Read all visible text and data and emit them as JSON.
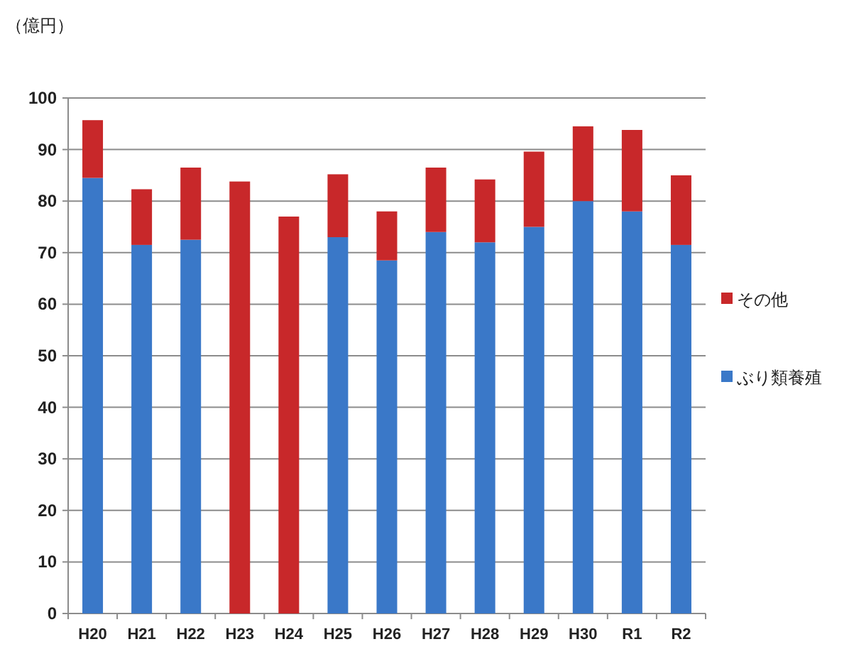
{
  "chart_data": {
    "type": "bar",
    "stacked": true,
    "ylabel": "（億円）",
    "categories": [
      "H20",
      "H21",
      "H22",
      "H23",
      "H24",
      "H25",
      "H26",
      "H27",
      "H28",
      "H29",
      "H30",
      "R1",
      "R2"
    ],
    "series": [
      {
        "name": "ぶり類養殖",
        "color": "#3a78c8",
        "values": [
          84.5,
          71.5,
          72.5,
          null,
          null,
          73,
          68.5,
          74,
          72,
          75,
          80,
          78,
          71.5
        ]
      },
      {
        "name": "その他",
        "color": "#c8282a",
        "values": [
          11.2,
          10.8,
          14,
          83.8,
          77,
          12.2,
          9.5,
          12.5,
          12.2,
          14.6,
          14.5,
          15.8,
          13.5
        ]
      }
    ],
    "ylim": [
      0,
      100
    ],
    "yticks": [
      0,
      10,
      20,
      30,
      40,
      50,
      60,
      70,
      80,
      90,
      100
    ],
    "grid": "y",
    "legend": "right"
  }
}
